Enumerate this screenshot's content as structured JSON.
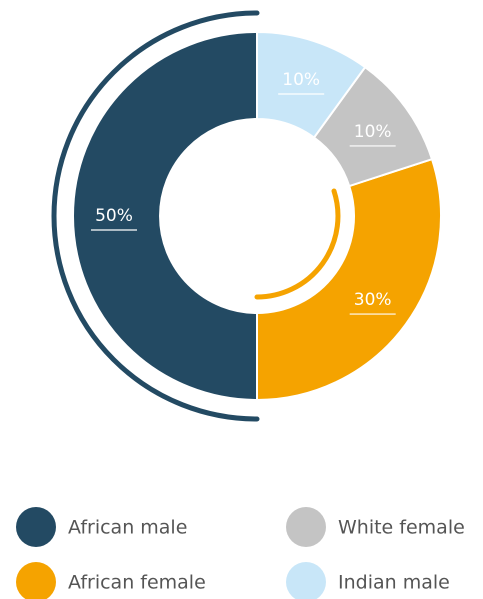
{
  "chart_data": {
    "type": "donut",
    "categories": [
      "African male",
      "African female",
      "White female",
      "Indian male"
    ],
    "values": [
      50,
      30,
      10,
      10
    ],
    "value_labels": [
      "50%",
      "30%",
      "10%",
      "10%"
    ],
    "colors": [
      "#234a63",
      "#f5a300",
      "#c4c4c4",
      "#c8e6f8"
    ]
  }
}
